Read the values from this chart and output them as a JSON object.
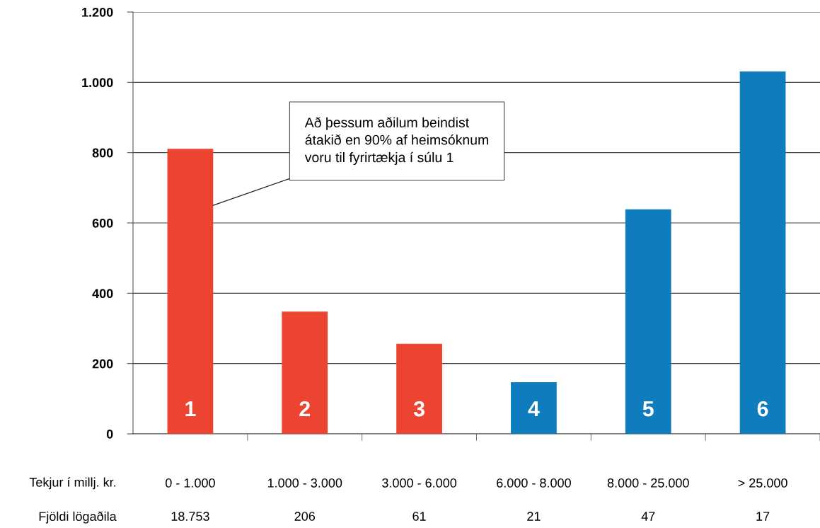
{
  "chart_data": {
    "type": "bar",
    "xlabel": "Tekjur í millj. kr.",
    "categories": [
      "0 - 1.000",
      "1.000 - 3.000",
      "3.000 - 6.000",
      "6.000 - 8.000",
      "8.000 - 25.000",
      "> 25.000"
    ],
    "values": [
      811,
      348,
      256,
      147,
      639,
      1031
    ],
    "colors": [
      "#ec4430",
      "#ec4430",
      "#ec4430",
      "#0e7cbd",
      "#0e7cbd",
      "#0e7cbd"
    ],
    "ylim": [
      0,
      1200
    ],
    "yticks": [
      0,
      200,
      400,
      600,
      800,
      {
        "value": 1000,
        "label": "1.000"
      },
      {
        "value": 1200,
        "label": "1.200"
      }
    ],
    "grid": "y",
    "annotations": [
      "Að þessum aðilum beindist\nátakið en 90% af heimsóknum\nvoru til fyrirtækja í súlu 1",
      "1",
      "2",
      "3",
      "4",
      "5",
      "6",
      "Fjöldi lögaðila",
      "18.753",
      "206",
      "61",
      "21",
      "47",
      "17"
    ]
  }
}
